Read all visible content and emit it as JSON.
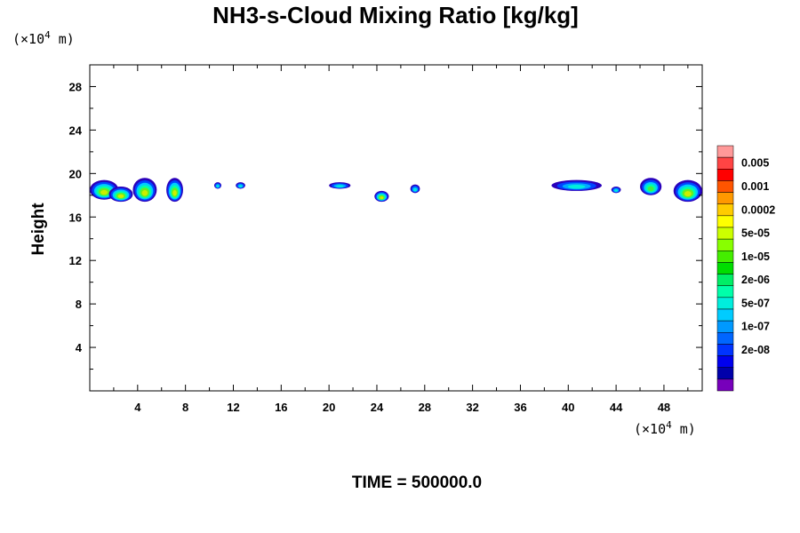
{
  "chart_data": {
    "type": "heatmap",
    "title": "NH3-s-Cloud Mixing Ratio [kg/kg]",
    "ylabel": "Height",
    "xunit": {
      "prefix": "(×10",
      "exp": "4",
      "suffix": " m)"
    },
    "yunit": {
      "prefix": "(×10",
      "exp": "4",
      "suffix": " m)"
    },
    "footer": "TIME = 500000.0",
    "xlim": [
      0,
      51.2
    ],
    "ylim": [
      0,
      30
    ],
    "xticks": [
      4,
      8,
      12,
      16,
      20,
      24,
      28,
      32,
      36,
      40,
      44,
      48
    ],
    "yticks": [
      4,
      8,
      12,
      16,
      20,
      24,
      28
    ],
    "colorbar": {
      "labels": [
        "0.005",
        "0.001",
        "0.0002",
        "5e-05",
        "1e-05",
        "2e-06",
        "5e-07",
        "1e-07",
        "2e-08"
      ],
      "colors": [
        "#ff9999",
        "#ff4444",
        "#ff0000",
        "#ff5500",
        "#ff9900",
        "#ffcc00",
        "#ffff00",
        "#ccff00",
        "#88ff00",
        "#44ee00",
        "#00dd00",
        "#00ee66",
        "#00ffaa",
        "#00eedd",
        "#00ccff",
        "#0099ff",
        "#0066ff",
        "#0033ff",
        "#0000ee",
        "#0000aa",
        "#7700bb"
      ]
    },
    "clouds": [
      {
        "x": [
          0.0,
          2.4
        ],
        "y": [
          17.6,
          19.4
        ],
        "peak": "1e-05"
      },
      {
        "x": [
          1.6,
          3.6
        ],
        "y": [
          17.4,
          18.8
        ],
        "peak": "1e-05"
      },
      {
        "x": [
          3.6,
          5.6
        ],
        "y": [
          17.4,
          19.6
        ],
        "peak": "1e-05"
      },
      {
        "x": [
          6.4,
          7.8
        ],
        "y": [
          17.4,
          19.6
        ],
        "peak": "1e-05"
      },
      {
        "x": [
          10.4,
          11.0
        ],
        "y": [
          18.6,
          19.2
        ],
        "peak": "5e-07"
      },
      {
        "x": [
          12.2,
          13.0
        ],
        "y": [
          18.6,
          19.2
        ],
        "peak": "5e-07"
      },
      {
        "x": [
          20.0,
          21.8
        ],
        "y": [
          18.6,
          19.2
        ],
        "peak": "5e-07"
      },
      {
        "x": [
          23.8,
          25.0
        ],
        "y": [
          17.4,
          18.4
        ],
        "peak": "1e-05"
      },
      {
        "x": [
          26.8,
          27.6
        ],
        "y": [
          18.2,
          19.0
        ],
        "peak": "5e-07"
      },
      {
        "x": [
          38.6,
          42.8
        ],
        "y": [
          18.4,
          19.4
        ],
        "peak": "5e-07"
      },
      {
        "x": [
          43.6,
          44.4
        ],
        "y": [
          18.2,
          18.8
        ],
        "peak": "5e-07"
      },
      {
        "x": [
          46.0,
          47.8
        ],
        "y": [
          18.0,
          19.6
        ],
        "peak": "2e-06"
      },
      {
        "x": [
          48.8,
          51.2
        ],
        "y": [
          17.4,
          19.4
        ],
        "peak": "1e-05"
      }
    ]
  }
}
